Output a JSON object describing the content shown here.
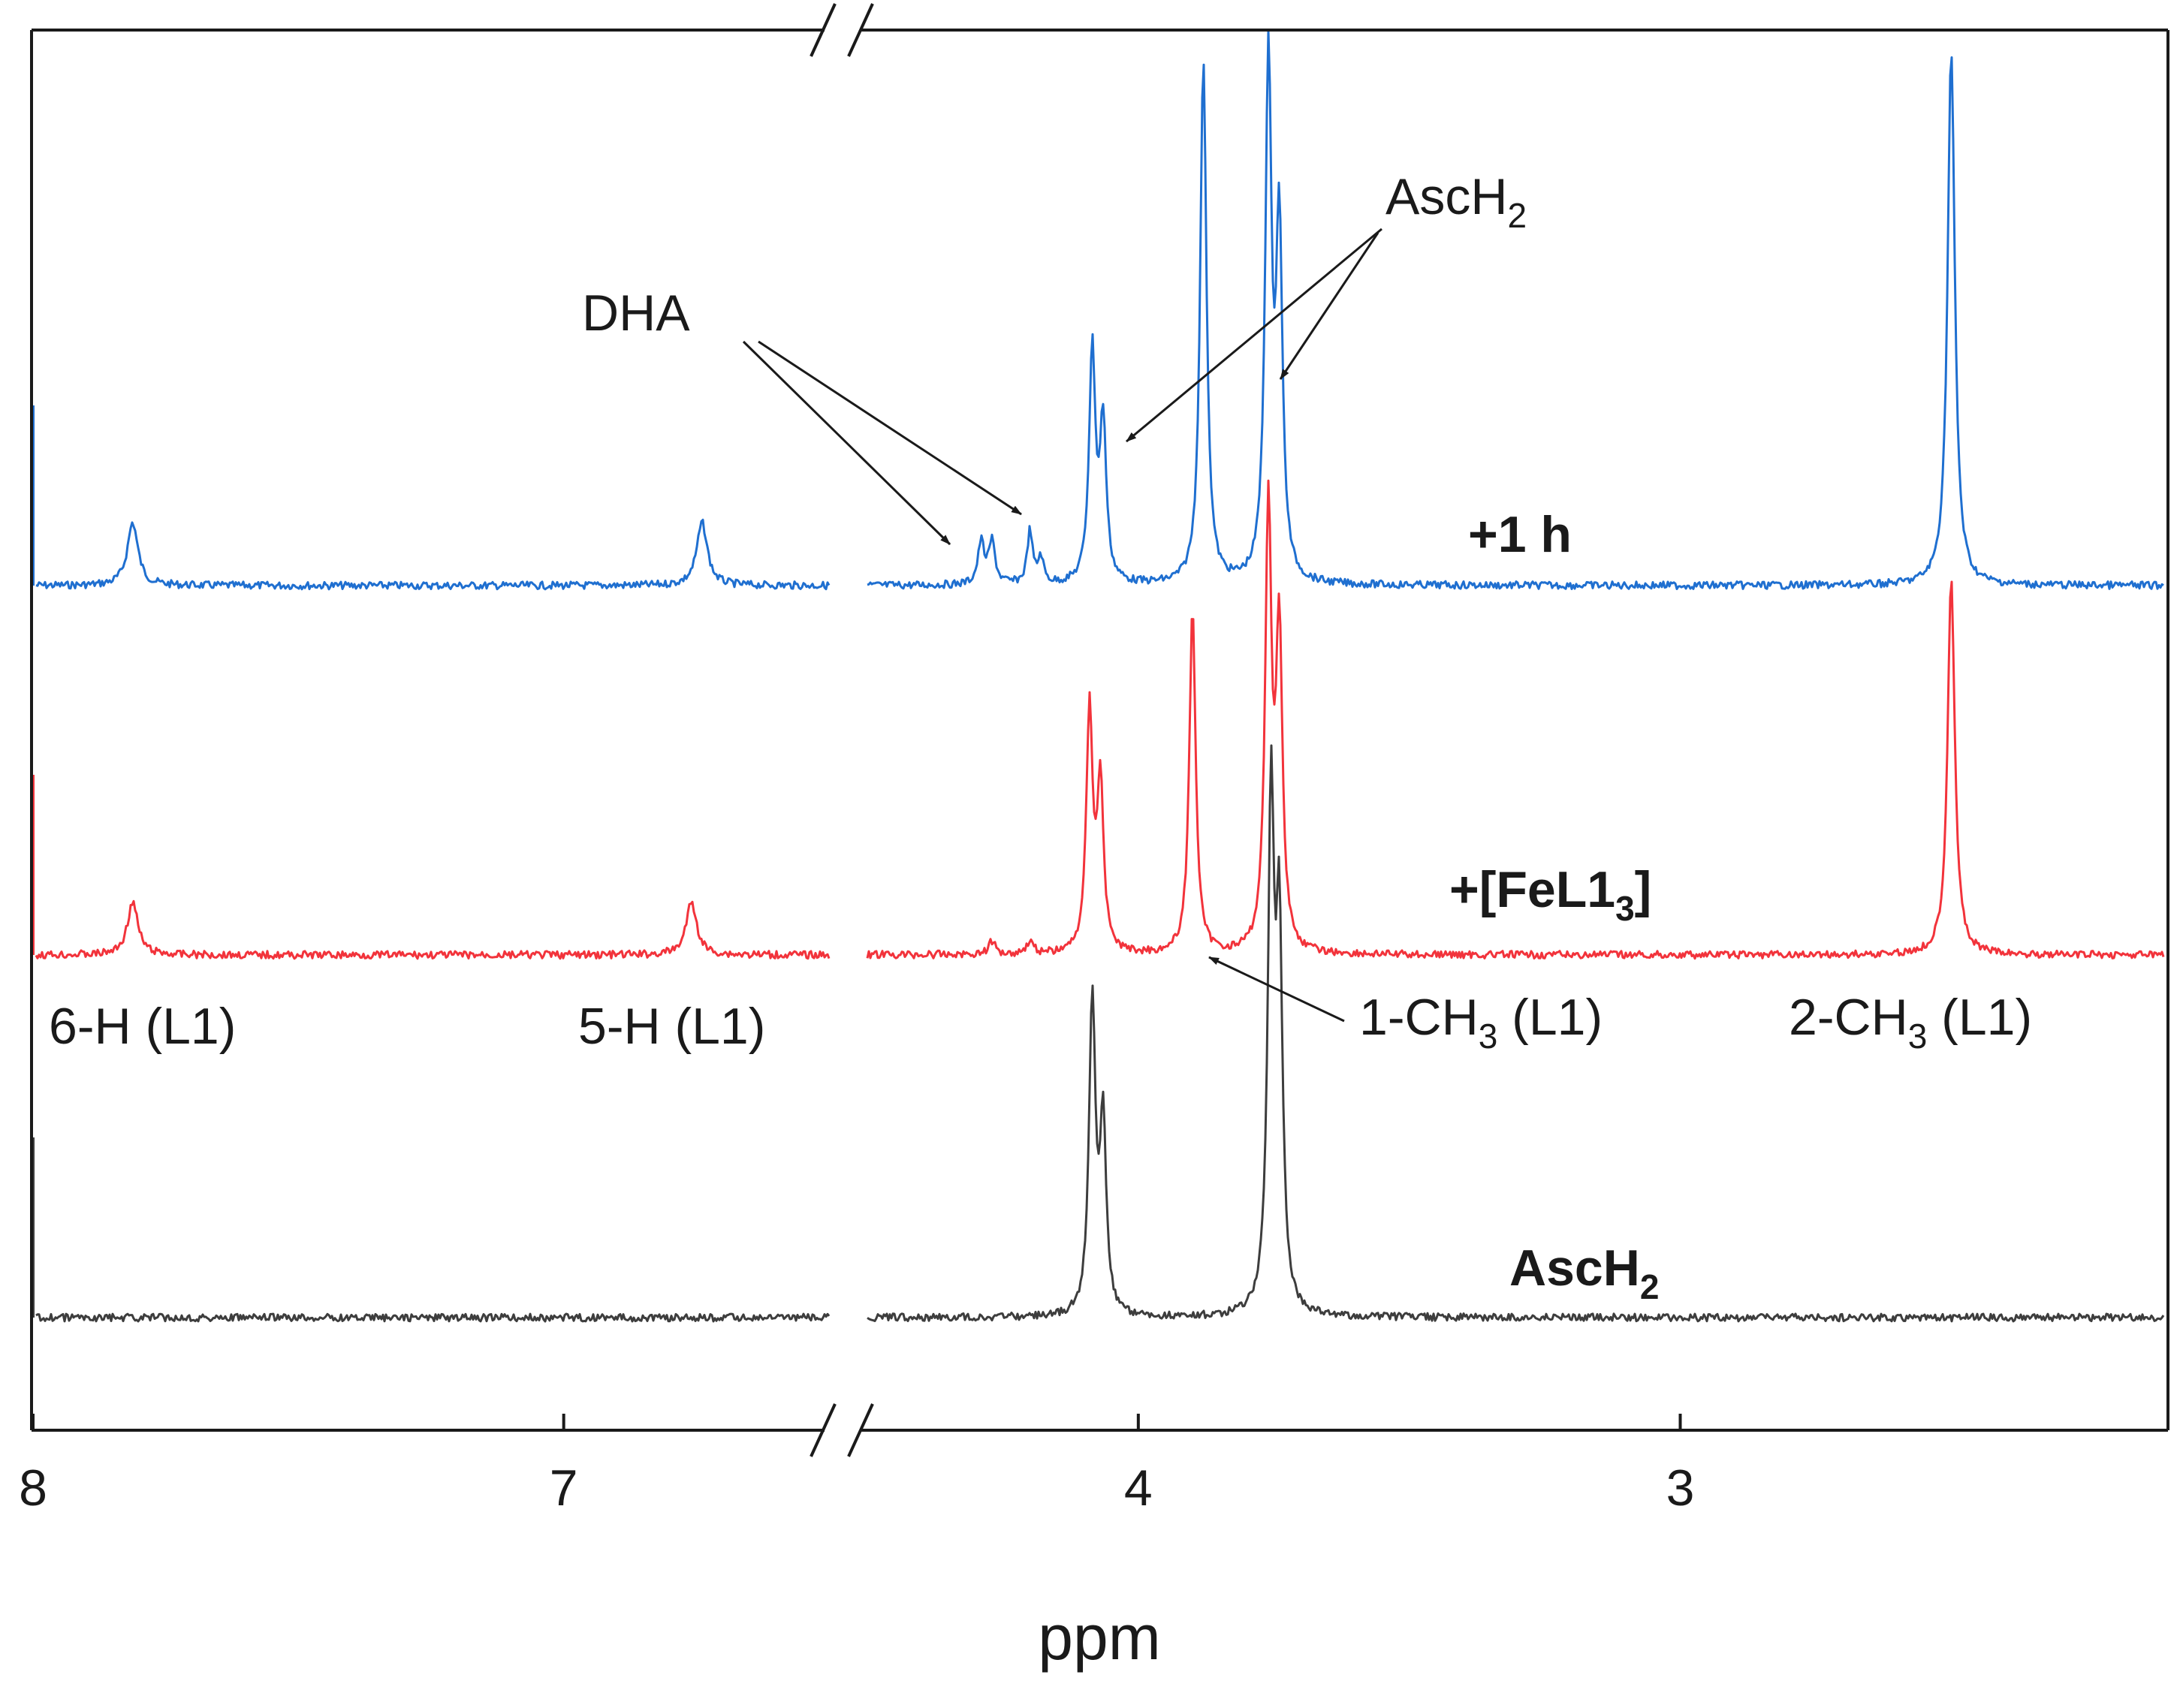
{
  "chart_data": {
    "type": "line",
    "title": "",
    "xlabel": "ppm",
    "ylabel": "",
    "x_reversed": true,
    "x_axis_break": {
      "from": 6.5,
      "to": 4.5
    },
    "x_segments": [
      {
        "xmin": 6.5,
        "xmax": 8.0,
        "ticks": [
          {
            "value": 8,
            "label": "8"
          },
          {
            "value": 7,
            "label": "7"
          }
        ]
      },
      {
        "xmin": 2.1,
        "xmax": 4.5,
        "ticks": [
          {
            "value": 4,
            "label": "4"
          },
          {
            "value": 3,
            "label": "3"
          }
        ]
      }
    ],
    "grid": false,
    "legend": "none",
    "series": [
      {
        "key": "plus_1h",
        "name_main": "+1 h",
        "name_sub": "",
        "name_tail": "",
        "color": "#1f6fd0",
        "peaks": [
          {
            "ppm": 7.81,
            "height": 0.06,
            "width": 0.012
          },
          {
            "ppm": 6.74,
            "height": 0.06,
            "width": 0.012
          },
          {
            "ppm": 4.29,
            "height": 0.04,
            "width": 0.007
          },
          {
            "ppm": 4.27,
            "height": 0.04,
            "width": 0.007
          },
          {
            "ppm": 4.2,
            "height": 0.05,
            "width": 0.006
          },
          {
            "ppm": 4.18,
            "height": 0.025,
            "width": 0.006
          },
          {
            "ppm": 4.085,
            "height": 0.22,
            "width": 0.007
          },
          {
            "ppm": 4.065,
            "height": 0.15,
            "width": 0.007
          },
          {
            "ppm": 3.88,
            "height": 0.5,
            "width": 0.007
          },
          {
            "ppm": 3.76,
            "height": 0.49,
            "width": 0.007
          },
          {
            "ppm": 3.74,
            "height": 0.33,
            "width": 0.007
          },
          {
            "ppm": 2.5,
            "height": 0.51,
            "width": 0.008
          }
        ]
      },
      {
        "key": "plus_fel13",
        "name_main": "+[FeL1",
        "name_sub": "3",
        "name_tail": "]",
        "color": "#f2333b",
        "peaks": [
          {
            "ppm": 7.81,
            "height": 0.05,
            "width": 0.012
          },
          {
            "ppm": 6.76,
            "height": 0.05,
            "width": 0.012
          },
          {
            "ppm": 4.27,
            "height": 0.012,
            "width": 0.008
          },
          {
            "ppm": 4.2,
            "height": 0.012,
            "width": 0.008
          },
          {
            "ppm": 4.09,
            "height": 0.23,
            "width": 0.007
          },
          {
            "ppm": 4.07,
            "height": 0.16,
            "width": 0.007
          },
          {
            "ppm": 3.9,
            "height": 0.33,
            "width": 0.007
          },
          {
            "ppm": 3.76,
            "height": 0.42,
            "width": 0.007
          },
          {
            "ppm": 3.74,
            "height": 0.3,
            "width": 0.007
          },
          {
            "ppm": 2.5,
            "height": 0.36,
            "width": 0.008
          }
        ]
      },
      {
        "key": "asch2",
        "name_main": "AscH",
        "name_sub": "2",
        "name_tail": "",
        "color": "#3d3d3d",
        "peaks": [
          {
            "ppm": 4.085,
            "height": 0.3,
            "width": 0.007
          },
          {
            "ppm": 4.065,
            "height": 0.18,
            "width": 0.007
          },
          {
            "ppm": 3.755,
            "height": 0.48,
            "width": 0.007
          },
          {
            "ppm": 3.74,
            "height": 0.35,
            "width": 0.007
          }
        ]
      }
    ],
    "annotations": [
      {
        "key": "dha",
        "main": "DHA",
        "sub": "",
        "tail": ""
      },
      {
        "key": "asch2_arrow",
        "main": "AscH",
        "sub": "2",
        "tail": ""
      },
      {
        "key": "h6",
        "main": "6-H (L1)",
        "sub": "",
        "tail": ""
      },
      {
        "key": "h5",
        "main": "5-H (L1)",
        "sub": "",
        "tail": ""
      },
      {
        "key": "ch3_1",
        "main": "1-CH",
        "sub": "3",
        "tail": " (L1)"
      },
      {
        "key": "ch3_2",
        "main": "2-CH",
        "sub": "3",
        "tail": " (L1)"
      }
    ]
  }
}
